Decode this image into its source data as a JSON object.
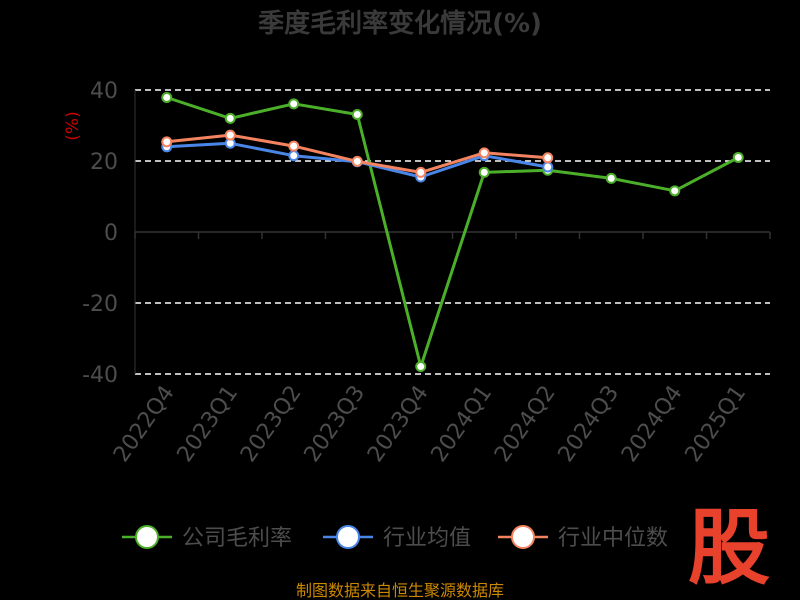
{
  "chart_data": {
    "type": "line",
    "title": "季度毛利率变化情况(%)",
    "unit_label": "(%)",
    "categories": [
      "2022Q4",
      "2023Q1",
      "2023Q2",
      "2023Q3",
      "2023Q4",
      "2024Q1",
      "2024Q2",
      "2024Q3",
      "2024Q4",
      "2025Q1"
    ],
    "ylim": [
      -40,
      40
    ],
    "yticks": [
      40,
      20,
      0,
      -20,
      -40
    ],
    "grid": true,
    "legend_position": "bottom",
    "series": [
      {
        "name": "公司毛利率",
        "color": "#4caf2a",
        "values": [
          37.9,
          32.0,
          36.1,
          33.1,
          -37.9,
          16.8,
          17.4,
          15.1,
          11.6,
          21.0
        ]
      },
      {
        "name": "行业均值",
        "color": "#4a86e8",
        "values": [
          24.0,
          25.0,
          21.5,
          19.8,
          15.5,
          21.5,
          18.3,
          null,
          null,
          null
        ]
      },
      {
        "name": "行业中位数",
        "color": "#f4845f",
        "values": [
          25.4,
          27.3,
          24.2,
          19.9,
          16.8,
          22.3,
          20.9,
          null,
          null,
          null
        ]
      }
    ]
  },
  "source_text": "制图数据来自恒生聚源数据库",
  "logo_text": "股"
}
